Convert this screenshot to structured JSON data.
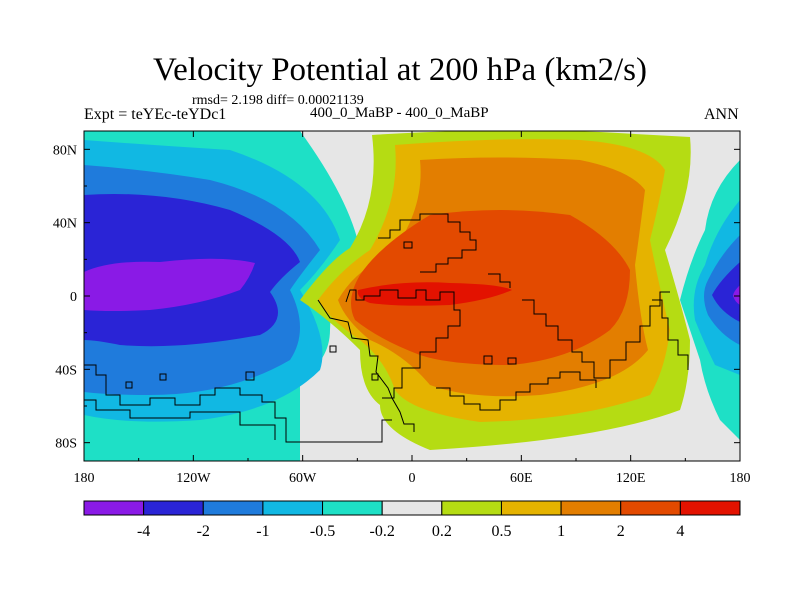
{
  "chart_data": {
    "type": "contour-map",
    "title": "Velocity Potential at 200 hPa (km2/s)",
    "stats": "rmsd= 2.198 diff= 0.00021139",
    "left_label": "Expt = teYEc-teYDc1",
    "center_label": "400_0_MaBP - 400_0_MaBP",
    "right_label": "ANN",
    "x_ticks": [
      "180",
      "120W",
      "60W",
      "0",
      "60E",
      "120E",
      "180"
    ],
    "x_range": [
      -180,
      180
    ],
    "y_ticks": [
      "80N",
      "40N",
      "0",
      "40S",
      "80S"
    ],
    "y_tick_values": [
      80,
      40,
      0,
      -40,
      -80
    ],
    "y_range": [
      -90,
      90
    ],
    "colorbar": {
      "levels": [
        "-4",
        "-2",
        "-1",
        "-0.5",
        "-0.2",
        "0.2",
        "0.5",
        "1",
        "2",
        "4"
      ],
      "colors": [
        "#8a1ae6",
        "#2a24d6",
        "#1f7bdc",
        "#11b8e3",
        "#1ee0c6",
        "#e6e6e6",
        "#b5dc13",
        "#e5b300",
        "#e37e00",
        "#e34a00",
        "#e31200"
      ]
    },
    "features": [
      {
        "label": "min",
        "lon": -150,
        "lat": 0,
        "value": -4.5
      },
      {
        "label": "max",
        "lon": 40,
        "lat": 0,
        "value": 4.2
      }
    ]
  }
}
